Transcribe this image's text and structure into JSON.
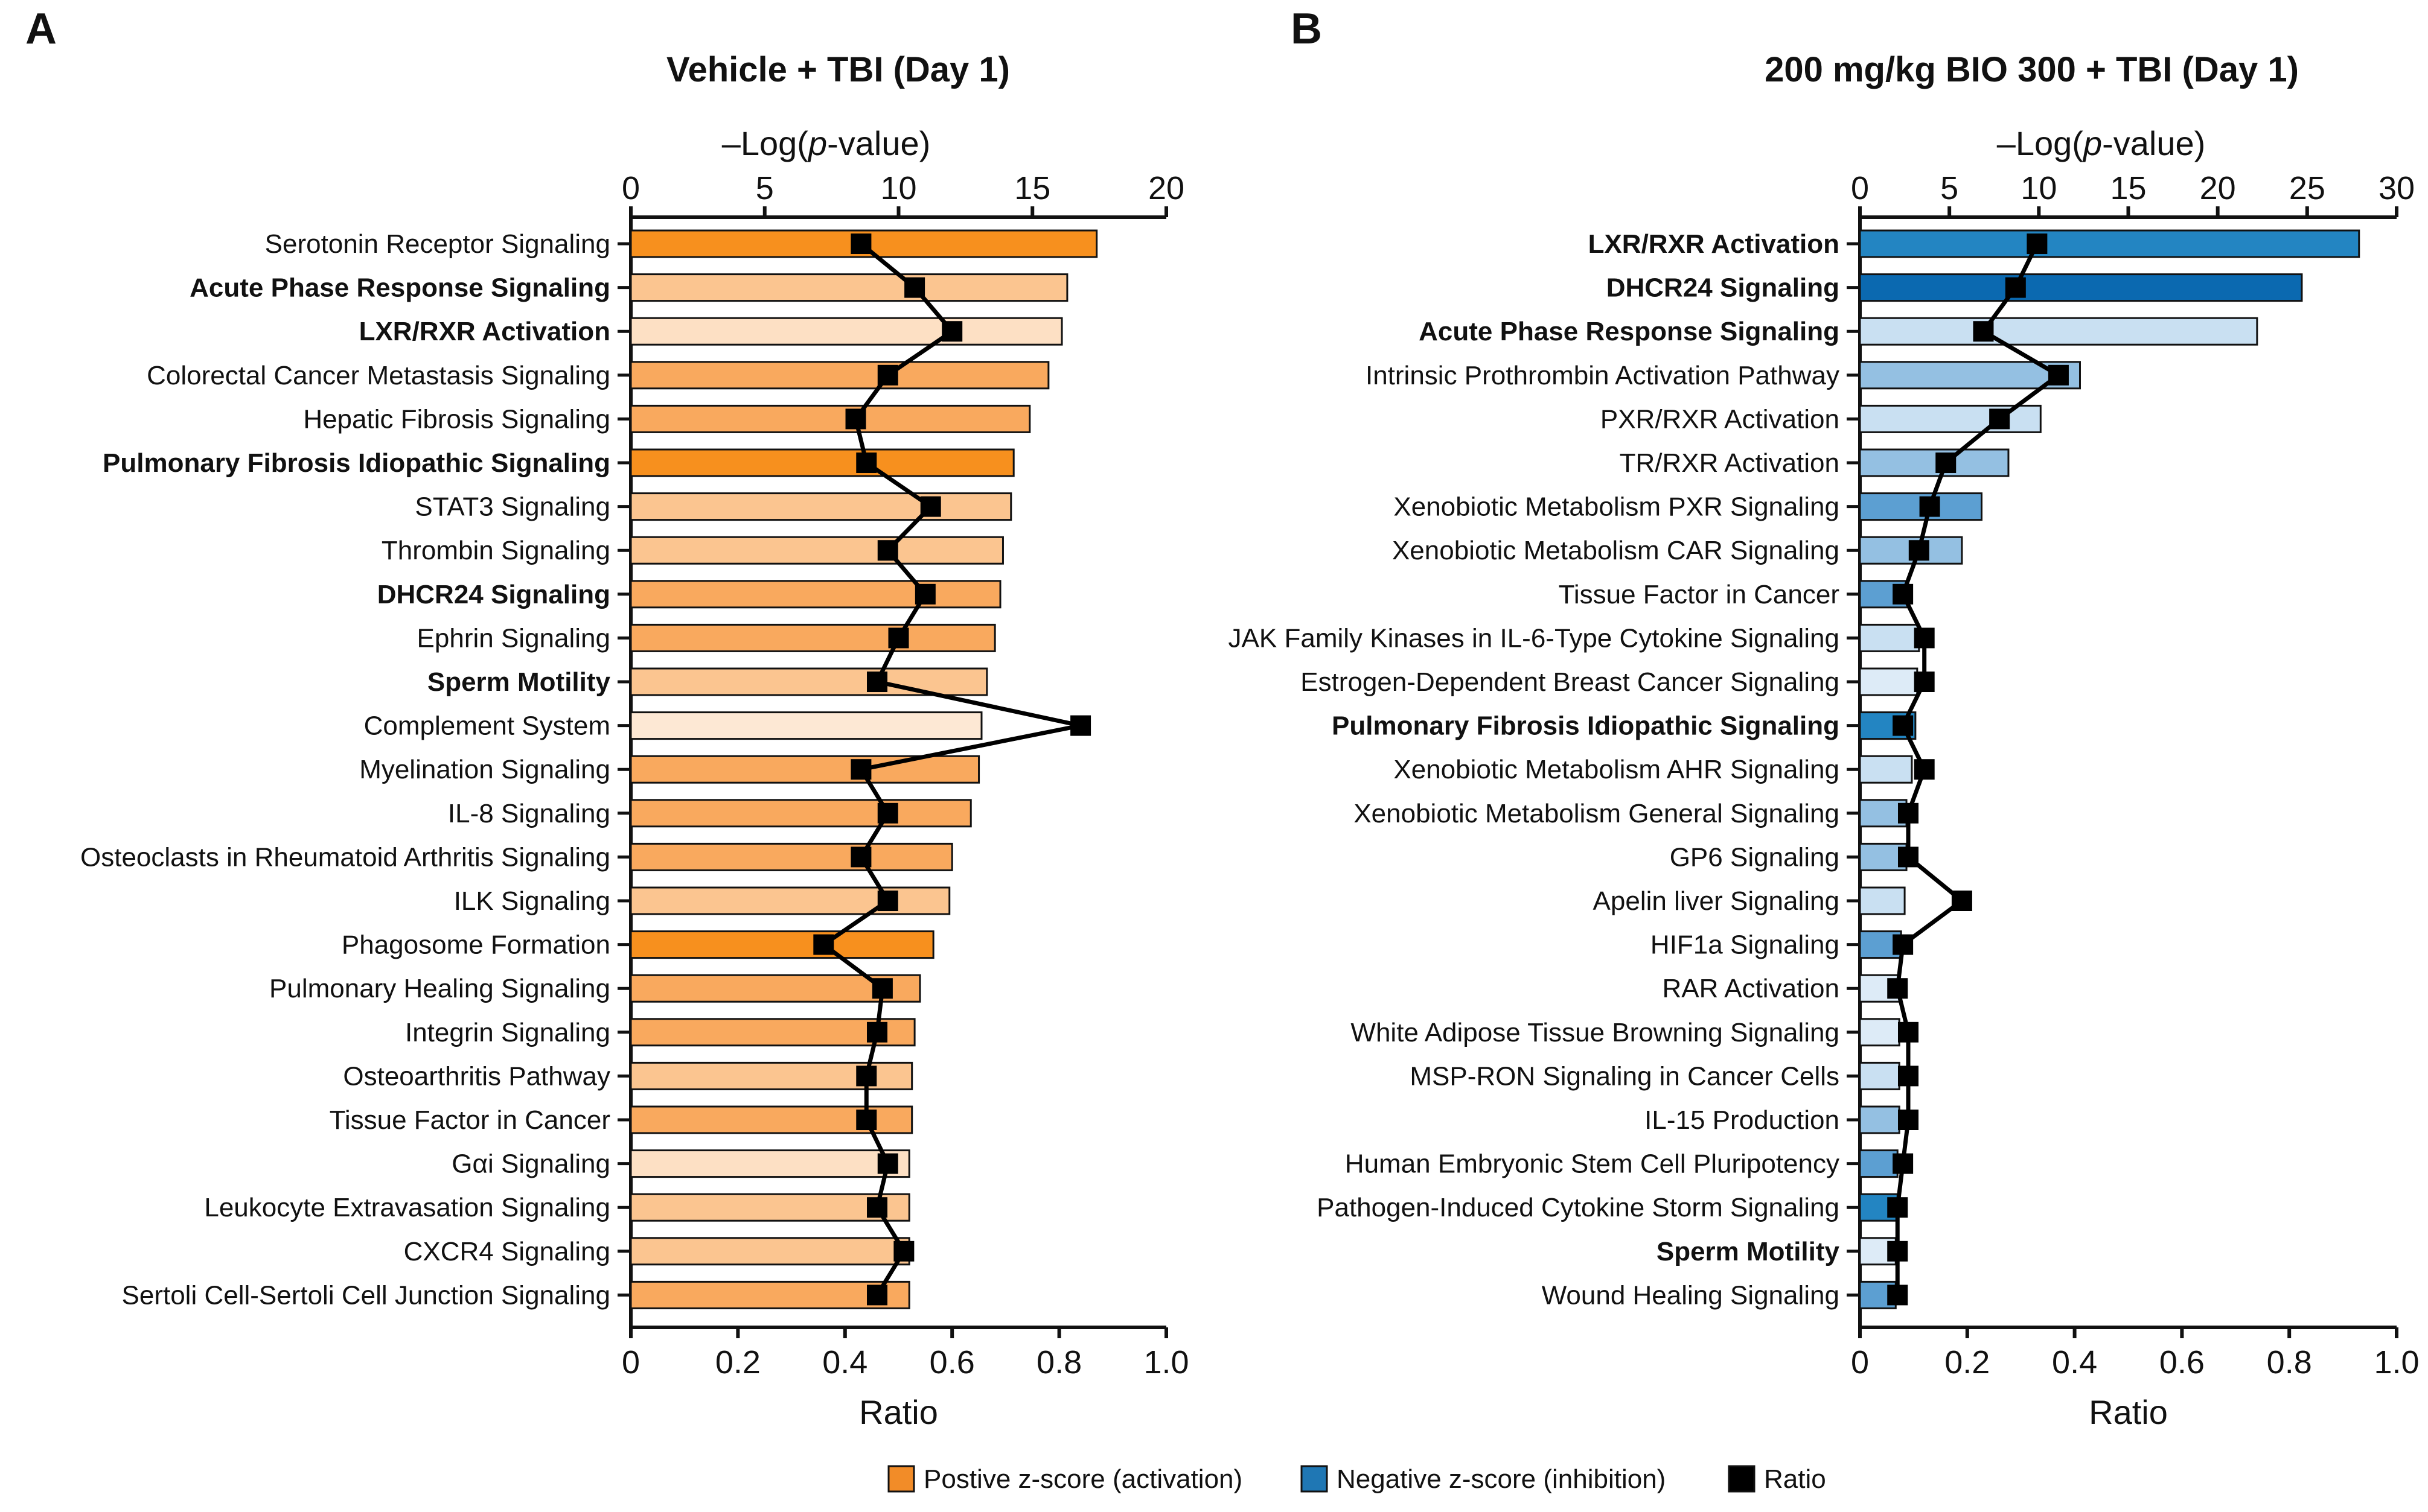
{
  "figure": {
    "legend": [
      {
        "label": "Postive z-score (activation)",
        "color": "#F28C28"
      },
      {
        "label": "Negative z-score (inhibition)",
        "color": "#1F77B4"
      },
      {
        "label": "Ratio",
        "color": "#000000"
      }
    ]
  },
  "chart_data": [
    {
      "type": "bar",
      "panel_label": "A",
      "title": "Vehicle + TBI (Day 1)",
      "x_top_label": "–Log(p-value)",
      "x_top_label_parts": [
        "–Log(",
        "p",
        "-value)"
      ],
      "x_top_ticks": [
        "0",
        "5",
        "10",
        "15",
        "20"
      ],
      "x_top_range": [
        0,
        20
      ],
      "x_bottom_label": "Ratio",
      "x_bottom_ticks": [
        "0",
        "0.2",
        "0.4",
        "0.6",
        "0.8",
        "1.0"
      ],
      "x_bottom_range": [
        0,
        1.0
      ],
      "orientation": "horizontal",
      "categories": [
        {
          "label": "Serotonin Receptor Signaling",
          "bold": false,
          "neg_log_p": 17.4,
          "ratio": 0.43,
          "color": "#F7901E"
        },
        {
          "label": "Acute Phase Response Signaling",
          "bold": true,
          "neg_log_p": 16.3,
          "ratio": 0.53,
          "color": "#FBC590"
        },
        {
          "label": "LXR/RXR Activation",
          "bold": true,
          "neg_log_p": 16.1,
          "ratio": 0.6,
          "color": "#FDE0C4"
        },
        {
          "label": "Colorectal Cancer Metastasis Signaling",
          "bold": false,
          "neg_log_p": 15.6,
          "ratio": 0.48,
          "color": "#F9A95E"
        },
        {
          "label": "Hepatic Fibrosis Signaling",
          "bold": false,
          "neg_log_p": 14.9,
          "ratio": 0.42,
          "color": "#F9A95E"
        },
        {
          "label": "Pulmonary Fibrosis Idiopathic Signaling",
          "bold": true,
          "neg_log_p": 14.3,
          "ratio": 0.44,
          "color": "#F7901E"
        },
        {
          "label": "STAT3 Signaling",
          "bold": false,
          "neg_log_p": 14.2,
          "ratio": 0.56,
          "color": "#FBC590"
        },
        {
          "label": "Thrombin Signaling",
          "bold": false,
          "neg_log_p": 13.9,
          "ratio": 0.48,
          "color": "#FBC590"
        },
        {
          "label": "DHCR24 Signaling",
          "bold": true,
          "neg_log_p": 13.8,
          "ratio": 0.55,
          "color": "#F9A95E"
        },
        {
          "label": "Ephrin Signaling",
          "bold": false,
          "neg_log_p": 13.6,
          "ratio": 0.5,
          "color": "#F9A95E"
        },
        {
          "label": "Sperm Motility",
          "bold": true,
          "neg_log_p": 13.3,
          "ratio": 0.46,
          "color": "#FBC590"
        },
        {
          "label": "Complement System",
          "bold": false,
          "neg_log_p": 13.1,
          "ratio": 0.84,
          "color": "#FDE8D4"
        },
        {
          "label": "Myelination Signaling",
          "bold": false,
          "neg_log_p": 13.0,
          "ratio": 0.43,
          "color": "#F9A95E"
        },
        {
          "label": "IL-8 Signaling",
          "bold": false,
          "neg_log_p": 12.7,
          "ratio": 0.48,
          "color": "#F9A95E"
        },
        {
          "label": "Osteoclasts in Rheumatoid Arthritis Signaling",
          "bold": false,
          "neg_log_p": 12.0,
          "ratio": 0.43,
          "color": "#F9A95E"
        },
        {
          "label": "ILK Signaling",
          "bold": false,
          "neg_log_p": 11.9,
          "ratio": 0.48,
          "color": "#FBC590"
        },
        {
          "label": "Phagosome Formation",
          "bold": false,
          "neg_log_p": 11.3,
          "ratio": 0.36,
          "color": "#F7901E"
        },
        {
          "label": "Pulmonary Healing Signaling",
          "bold": false,
          "neg_log_p": 10.8,
          "ratio": 0.47,
          "color": "#F9A95E"
        },
        {
          "label": "Integrin Signaling",
          "bold": false,
          "neg_log_p": 10.6,
          "ratio": 0.46,
          "color": "#F9A95E"
        },
        {
          "label": "Osteoarthritis Pathway",
          "bold": false,
          "neg_log_p": 10.5,
          "ratio": 0.44,
          "color": "#FBC590"
        },
        {
          "label": "Tissue Factor in Cancer",
          "bold": false,
          "neg_log_p": 10.5,
          "ratio": 0.44,
          "color": "#F9A95E"
        },
        {
          "label": "Gαi Signaling",
          "bold": false,
          "neg_log_p": 10.4,
          "ratio": 0.48,
          "color": "#FDE0C4"
        },
        {
          "label": "Leukocyte Extravasation Signaling",
          "bold": false,
          "neg_log_p": 10.4,
          "ratio": 0.46,
          "color": "#FBC590"
        },
        {
          "label": "CXCR4 Signaling",
          "bold": false,
          "neg_log_p": 10.4,
          "ratio": 0.51,
          "color": "#FBC590"
        },
        {
          "label": "Sertoli Cell-Sertoli Cell Junction Signaling",
          "bold": false,
          "neg_log_p": 10.4,
          "ratio": 0.46,
          "color": "#F9A95E"
        }
      ]
    },
    {
      "type": "bar",
      "panel_label": "B",
      "title": "200 mg/kg BIO 300 + TBI (Day 1)",
      "x_top_label": "–Log(p-value)",
      "x_top_label_parts": [
        "–Log(",
        "p",
        "-value)"
      ],
      "x_top_ticks": [
        "0",
        "5",
        "10",
        "15",
        "20",
        "25",
        "30"
      ],
      "x_top_range": [
        0,
        30
      ],
      "x_bottom_label": "Ratio",
      "x_bottom_ticks": [
        "0",
        "0.2",
        "0.4",
        "0.6",
        "0.8",
        "1.0"
      ],
      "x_bottom_range": [
        0,
        1.0
      ],
      "orientation": "horizontal",
      "categories": [
        {
          "label": "LXR/RXR Activation",
          "bold": true,
          "neg_log_p": 27.9,
          "ratio": 0.33,
          "color": "#2385C2"
        },
        {
          "label": "DHCR24 Signaling",
          "bold": true,
          "neg_log_p": 24.7,
          "ratio": 0.29,
          "color": "#0B69B0"
        },
        {
          "label": "Acute Phase Response Signaling",
          "bold": true,
          "neg_log_p": 22.2,
          "ratio": 0.23,
          "color": "#C9E0F2"
        },
        {
          "label": "Intrinsic Prothrombin Activation Pathway",
          "bold": false,
          "neg_log_p": 12.3,
          "ratio": 0.37,
          "color": "#94C0E2"
        },
        {
          "label": "PXR/RXR Activation",
          "bold": false,
          "neg_log_p": 10.1,
          "ratio": 0.26,
          "color": "#C9E0F2"
        },
        {
          "label": "TR/RXR Activation",
          "bold": false,
          "neg_log_p": 8.3,
          "ratio": 0.16,
          "color": "#94C0E2"
        },
        {
          "label": "Xenobiotic Metabolism PXR Signaling",
          "bold": false,
          "neg_log_p": 6.8,
          "ratio": 0.13,
          "color": "#5C9FD2"
        },
        {
          "label": "Xenobiotic Metabolism CAR Signaling",
          "bold": false,
          "neg_log_p": 5.7,
          "ratio": 0.11,
          "color": "#94C0E2"
        },
        {
          "label": "Tissue Factor in Cancer",
          "bold": false,
          "neg_log_p": 2.7,
          "ratio": 0.08,
          "color": "#5C9FD2"
        },
        {
          "label": "JAK Family Kinases in IL-6-Type Cytokine Signaling",
          "bold": false,
          "neg_log_p": 3.3,
          "ratio": 0.12,
          "color": "#C9E0F2"
        },
        {
          "label": "Estrogen-Dependent Breast Cancer Signaling",
          "bold": false,
          "neg_log_p": 3.2,
          "ratio": 0.12,
          "color": "#DDEBF7"
        },
        {
          "label": "Pulmonary Fibrosis Idiopathic Signaling",
          "bold": true,
          "neg_log_p": 3.1,
          "ratio": 0.08,
          "color": "#2385C2"
        },
        {
          "label": "Xenobiotic Metabolism AHR Signaling",
          "bold": false,
          "neg_log_p": 2.9,
          "ratio": 0.12,
          "color": "#C9E0F2"
        },
        {
          "label": "Xenobiotic Metabolism General Signaling",
          "bold": false,
          "neg_log_p": 2.6,
          "ratio": 0.09,
          "color": "#94C0E2"
        },
        {
          "label": "GP6 Signaling",
          "bold": false,
          "neg_log_p": 2.6,
          "ratio": 0.09,
          "color": "#94C0E2"
        },
        {
          "label": "Apelin liver Signaling",
          "bold": false,
          "neg_log_p": 2.5,
          "ratio": 0.19,
          "color": "#C9E0F2"
        },
        {
          "label": "HIF1a Signaling",
          "bold": false,
          "neg_log_p": 2.3,
          "ratio": 0.08,
          "color": "#5C9FD2"
        },
        {
          "label": "RAR Activation",
          "bold": false,
          "neg_log_p": 2.2,
          "ratio": 0.07,
          "color": "#DDEBF7"
        },
        {
          "label": "White Adipose Tissue Browning Signaling",
          "bold": false,
          "neg_log_p": 2.2,
          "ratio": 0.09,
          "color": "#DDEBF7"
        },
        {
          "label": "MSP-RON Signaling in Cancer Cells",
          "bold": false,
          "neg_log_p": 2.2,
          "ratio": 0.09,
          "color": "#C9E0F2"
        },
        {
          "label": "IL-15 Production",
          "bold": false,
          "neg_log_p": 2.2,
          "ratio": 0.09,
          "color": "#94C0E2"
        },
        {
          "label": "Human Embryonic Stem Cell Pluripotency",
          "bold": false,
          "neg_log_p": 2.1,
          "ratio": 0.08,
          "color": "#5C9FD2"
        },
        {
          "label": "Pathogen-Induced Cytokine Storm Signaling",
          "bold": false,
          "neg_log_p": 2.1,
          "ratio": 0.07,
          "color": "#2385C2"
        },
        {
          "label": "Sperm Motility",
          "bold": true,
          "neg_log_p": 2.0,
          "ratio": 0.07,
          "color": "#DDEBF7"
        },
        {
          "label": "Wound Healing Signaling",
          "bold": false,
          "neg_log_p": 2.0,
          "ratio": 0.07,
          "color": "#5C9FD2"
        }
      ]
    }
  ]
}
